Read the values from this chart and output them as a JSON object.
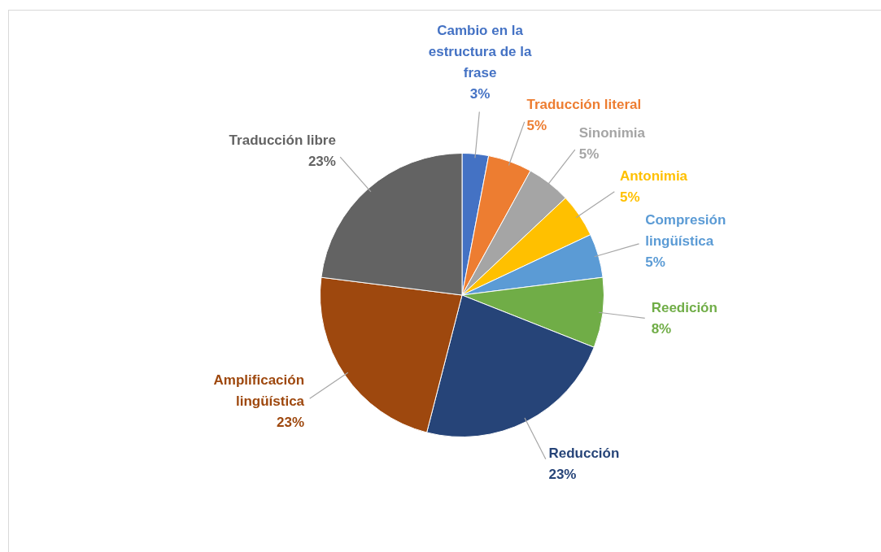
{
  "chart_data": {
    "type": "pie",
    "categories": [
      "Cambio en la estructura de la frase",
      "Traducción literal",
      "Sinonimia",
      "Antonimia",
      "Compresión lingüística",
      "Reedición",
      "Reducción",
      "Amplificación lingüística",
      "Traducción libre"
    ],
    "values": [
      3,
      5,
      5,
      5,
      5,
      8,
      23,
      23,
      23
    ],
    "value_labels": [
      "3%",
      "5%",
      "5%",
      "5%",
      "5%",
      "8%",
      "23%",
      "23%",
      "23%"
    ],
    "colors": [
      "#4472c4",
      "#ed7d31",
      "#a5a5a5",
      "#ffc000",
      "#5b9bd5",
      "#70ad47",
      "#264478",
      "#9e480e",
      "#636363"
    ],
    "legend": false
  }
}
